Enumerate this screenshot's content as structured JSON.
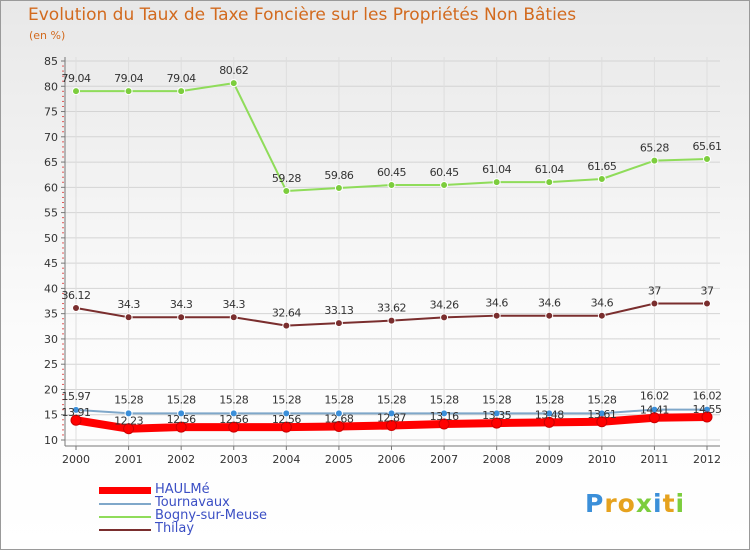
{
  "chart_data": {
    "type": "line",
    "title": "Evolution du Taux de Taxe Foncière sur les Propriétés Non Bâties",
    "ylabel": "(en %)",
    "xlabel": "",
    "ylim": [
      10,
      85
    ],
    "yticks": [
      10,
      15,
      20,
      25,
      30,
      35,
      40,
      45,
      50,
      55,
      60,
      65,
      70,
      75,
      80,
      85
    ],
    "categories": [
      "2000",
      "2001",
      "2002",
      "2003",
      "2004",
      "2005",
      "2006",
      "2007",
      "2008",
      "2009",
      "2010",
      "2011",
      "2012"
    ],
    "series": [
      {
        "name": "HAULMé",
        "color": "#ff0000",
        "marker": "#ff0000",
        "values": [
          13.91,
          12.23,
          12.56,
          12.56,
          12.56,
          12.68,
          12.87,
          13.16,
          13.35,
          13.48,
          13.61,
          14.41,
          14.55
        ],
        "labels": [
          "13.91",
          "12.23",
          "12.56",
          "12.56",
          "12.56",
          "12.68",
          "12.87",
          "13.16",
          "13.35",
          "13.48",
          "13.61",
          "14.41",
          "14.55"
        ]
      },
      {
        "name": "Tournavaux",
        "color": "#7fa7c9",
        "marker": "#3b8fd9",
        "values": [
          15.97,
          15.28,
          15.28,
          15.28,
          15.28,
          15.28,
          15.28,
          15.28,
          15.28,
          15.28,
          15.28,
          16.02,
          16.02
        ],
        "labels": [
          "15.97",
          "15.28",
          "15.28",
          "15.28",
          "15.28",
          "15.28",
          "15.28",
          "15.28",
          "15.28",
          "15.28",
          "15.28",
          "16.02",
          "16.02"
        ]
      },
      {
        "name": "Bogny-sur-Meuse",
        "color": "#8fdc5a",
        "marker": "#7ccd3d",
        "values": [
          79.04,
          79.04,
          79.04,
          80.62,
          59.28,
          59.86,
          60.45,
          60.45,
          61.04,
          61.04,
          61.65,
          65.28,
          65.61
        ],
        "labels": [
          "79.04",
          "79.04",
          "79.04",
          "80.62",
          "59.28",
          "59.86",
          "60.45",
          "60.45",
          "61.04",
          "61.04",
          "61.65",
          "65.28",
          "65.61"
        ]
      },
      {
        "name": "Thilay",
        "color": "#7a2e2e",
        "marker": "#7a2e2e",
        "values": [
          36.12,
          34.3,
          34.3,
          34.3,
          32.64,
          33.13,
          33.62,
          34.26,
          34.6,
          34.6,
          34.6,
          37,
          37
        ],
        "labels": [
          "36.12",
          "34.3",
          "34.3",
          "34.3",
          "32.64",
          "33.13",
          "33.62",
          "34.26",
          "34.6",
          "34.6",
          "34.6",
          "37",
          "37"
        ]
      }
    ]
  },
  "legend": {
    "items": [
      {
        "label": "HAULMé",
        "color": "#ff0000"
      },
      {
        "label": "Tournavaux",
        "color": "#7fa7c9"
      },
      {
        "label": "Bogny-sur-Meuse",
        "color": "#8fdc5a"
      },
      {
        "label": "Thilay",
        "color": "#7a2e2e"
      }
    ]
  },
  "logo": {
    "letters": [
      "P",
      "r",
      "o",
      "x",
      "i",
      "t",
      "i"
    ],
    "colors": [
      "#3b8fd9",
      "#e6a21e",
      "#e6a21e",
      "#7ccd3d",
      "#3b8fd9",
      "#e6a21e",
      "#7ccd3d"
    ]
  }
}
